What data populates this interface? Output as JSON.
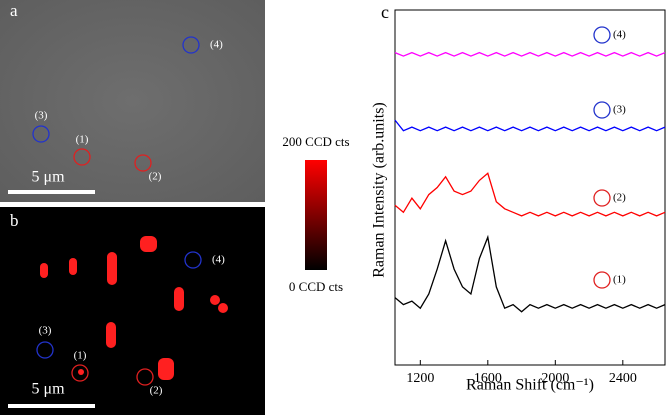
{
  "panel_a": {
    "label": "a",
    "scale_bar": "5 μm",
    "circles": [
      {
        "label": "(4)",
        "color": "#2233cc"
      },
      {
        "label": "(3)",
        "color": "#2233cc"
      },
      {
        "label": "(1)",
        "color": "#e02020"
      },
      {
        "label": "(2)",
        "color": "#e02020"
      }
    ]
  },
  "panel_b": {
    "label": "b",
    "scale_bar": "5 μm",
    "circles": [
      {
        "label": "(4)",
        "color": "#2233cc"
      },
      {
        "label": "(3)",
        "color": "#2233cc"
      },
      {
        "label": "(1)",
        "color": "#e02020"
      },
      {
        "label": "(2)",
        "color": "#e02020"
      }
    ]
  },
  "colorbar": {
    "max_label": "200 CCD cts",
    "min_label": "0 CCD cts"
  },
  "chart_data": {
    "type": "line",
    "panel_label": "c",
    "x_label": "Raman Shift (cm⁻¹)",
    "y_label": "Raman Intensity (arb.units)",
    "xlim": [
      1050,
      2650
    ],
    "ylim": [
      0,
      100
    ],
    "xticks": [
      1200,
      1600,
      2000,
      2400
    ],
    "x": [
      1050,
      1100,
      1150,
      1200,
      1250,
      1300,
      1350,
      1400,
      1450,
      1500,
      1550,
      1600,
      1650,
      1700,
      1750,
      1800,
      1850,
      1900,
      1950,
      2000,
      2050,
      2100,
      2150,
      2200,
      2250,
      2300,
      2350,
      2400,
      2450,
      2500,
      2550,
      2600,
      2650
    ],
    "series": [
      {
        "name": "(1)",
        "color": "#000000",
        "marker_color": "#e02020",
        "values": [
          19,
          17,
          18,
          16,
          20,
          27,
          35,
          27,
          22,
          20,
          30,
          36,
          22,
          16,
          17,
          15,
          17,
          16,
          17,
          16,
          17,
          16,
          17,
          16,
          17,
          16,
          17,
          16,
          17,
          16,
          17,
          16,
          17
        ]
      },
      {
        "name": "(2)",
        "color": "#ff0000",
        "marker_color": "#e02020",
        "values": [
          45,
          43,
          47,
          44,
          48,
          50,
          53,
          49,
          48,
          49,
          52,
          54,
          46,
          44,
          43,
          42,
          43,
          42,
          43,
          42,
          43,
          42,
          43,
          42,
          43,
          42,
          43,
          42,
          43,
          42,
          43,
          42,
          43
        ]
      },
      {
        "name": "(3)",
        "color": "#0000ff",
        "marker_color": "#2233cc",
        "values": [
          69,
          66,
          67,
          66,
          67,
          66,
          67,
          66,
          67,
          66,
          67,
          66,
          67,
          66,
          67,
          66,
          67,
          66,
          67,
          66,
          67,
          66,
          67,
          66,
          67,
          66,
          67,
          66,
          67,
          66,
          67,
          66,
          67
        ]
      },
      {
        "name": "(4)",
        "color": "#ff00ff",
        "marker_color": "#2233cc",
        "values": [
          88,
          87,
          88,
          87,
          88,
          87,
          88,
          87,
          88,
          87,
          88,
          87,
          88,
          87,
          88,
          87,
          88,
          87,
          88,
          87,
          88,
          87,
          88,
          87,
          88,
          87,
          88,
          87,
          88,
          87,
          88,
          87,
          88
        ]
      }
    ]
  }
}
